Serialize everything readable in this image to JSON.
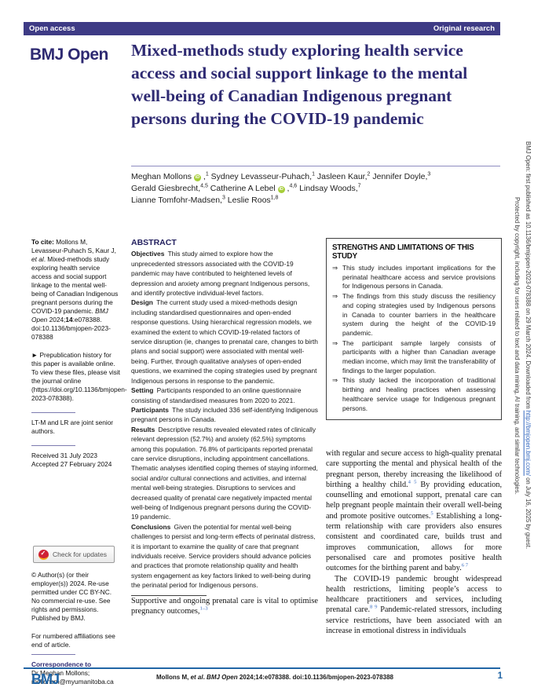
{
  "topbar": {
    "left": "Open access",
    "right": "Original research"
  },
  "brand": {
    "journal": "BMJ Open",
    "footer_logo": "BMJ"
  },
  "article": {
    "title": "Mixed-methods study exploring health service access and social support linkage to the mental well-being of Canadian Indigenous pregnant persons during the COVID-19 pandemic",
    "author_lines": [
      [
        {
          "name": "Meghan Mollons",
          "orcid": true,
          "comma": true,
          "sup": "1"
        },
        {
          "name": "Sydney Levasseur-Puhach",
          "comma": true,
          "sup": "1"
        },
        {
          "name": "Jasleen Kaur",
          "comma": true,
          "sup": "2"
        },
        {
          "name": "Jennifer Doyle",
          "comma": true,
          "sup": "3"
        }
      ],
      [
        {
          "name": "Gerald Giesbrecht",
          "comma": true,
          "sup": "4,5"
        },
        {
          "name": "Catherine A Lebel",
          "orcid": true,
          "comma": true,
          "sup": "4,6"
        },
        {
          "name": "Lindsay Woods",
          "comma": true,
          "sup": "7"
        }
      ],
      [
        {
          "name": "Lianne Tomfohr-Madsen",
          "comma": true,
          "sup": "3"
        },
        {
          "name": "Leslie Roos",
          "comma": false,
          "sup": "1,8"
        }
      ]
    ]
  },
  "sidebar": {
    "to_cite": [
      {
        "t": "To cite: ",
        "b": true
      },
      {
        "t": "Mollons M, Levasseur-Puhach S, Kaur J, "
      },
      {
        "t": "et al",
        "i": true
      },
      {
        "t": ". Mixed-methods study exploring health service access and social support linkage to the mental well-being of Canadian Indigenous pregnant persons during the COVID-19 pandemic. "
      },
      {
        "t": "BMJ Open",
        "i": true
      },
      {
        "t": " 2024;"
      },
      {
        "t": "14",
        "b": true
      },
      {
        "t": ":e078388. doi:10.1136/bmjopen-2023-078388"
      }
    ],
    "prepub": "► Prepublication history for this paper is available online. To view these files, please visit the journal online (https://doi.org/10.1136/bmjopen-2023-078388).",
    "joint_seniors": "LT-M and LR are joint senior authors.",
    "received": "Received 31 July 2023",
    "accepted": "Accepted 27 February 2024",
    "check_updates": "Check for updates",
    "copyright": "© Author(s) (or their employer(s)) 2024. Re-use permitted under CC BY-NC. No commercial re-use. See rights and permissions. Published by BMJ.",
    "affiliations_note": "For numbered affiliations see end of article.",
    "correspondence_label": "Correspondence to",
    "correspondence_text": "Dr Meghan Mollons; mollonsm@myumanitoba.ca"
  },
  "abstract": {
    "heading": "ABSTRACT",
    "sections": [
      {
        "label": "Objectives",
        "text": "This study aimed to explore how the unprecedented stressors associated with the COVID-19 pandemic may have contributed to heightened levels of depression and anxiety among pregnant Indigenous persons, and identify protective individual-level factors."
      },
      {
        "label": "Design",
        "text": "The current study used a mixed-methods design including standardised questionnaires and open-ended response questions. Using hierarchical regression models, we examined the extent to which COVID-19-related factors of service disruption (ie, changes to prenatal care, changes to birth plans and social support) were associated with mental well-being. Further, through qualitative analyses of open-ended questions, we examined the coping strategies used by pregnant Indigenous persons in response to the pandemic."
      },
      {
        "label": "Setting",
        "text": "Participants responded to an online questionnaire consisting of standardised measures from 2020 to 2021."
      },
      {
        "label": "Participants",
        "text": "The study included 336 self-identifying Indigenous pregnant persons in Canada."
      },
      {
        "label": "Results",
        "text": "Descriptive results revealed elevated rates of clinically relevant depression (52.7%) and anxiety (62.5%) symptoms among this population. 76.8% of participants reported prenatal care service disruptions, including appointment cancellations. Thematic analyses identified coping themes of staying informed, social and/or cultural connections and activities, and internal mental well-being strategies. Disruptions to services and decreased quality of prenatal care negatively impacted mental well-being of Indigenous pregnant persons during the COVID-19 pandemic."
      },
      {
        "label": "Conclusions",
        "text": "Given the potential for mental well-being challenges to persist and long-term effects of perinatal distress, it is important to examine the quality of care that pregnant individuals receive. Service providers should advance policies and practices that promote relationship quality and health system engagement as key factors linked to well-being during the perinatal period for Indigenous persons."
      }
    ]
  },
  "strengths": {
    "heading": "STRENGTHS AND LIMITATIONS OF THIS STUDY",
    "arrow": "⇒",
    "items": [
      "This study includes important implications for the perinatal healthcare access and service provisions for Indigenous persons in Canada.",
      "The findings from this study discuss the resiliency and coping strategies used by Indigenous persons in Canada to counter barriers in the healthcare system during the height of the COVID-19 pandemic.",
      "The participant sample largely consists of participants with a higher than Canadian average median income, which may limit the transferability of findings to the larger population.",
      "This study lacked the incorporation of traditional birthing and healing practices when assessing healthcare service usage for Indigenous pregnant persons."
    ]
  },
  "body": {
    "intro": [
      {
        "t": "Supportive and ongoing prenatal care is vital to optimise pregnancy outcomes,"
      },
      {
        "t": "1–3",
        "sup": true,
        "c": "ref"
      }
    ],
    "col2_p1": [
      {
        "t": "with regular and secure access to high-quality prenatal care supporting the mental and physical health of the pregnant person, thereby increasing the likelihood of birthing a healthy child."
      },
      {
        "t": "4 5",
        "sup": true,
        "c": "ref"
      },
      {
        "t": " By providing education, counselling and emotional support, prenatal care can help pregnant people maintain their overall well-being and promote positive outcomes."
      },
      {
        "t": "5",
        "sup": true,
        "c": "ref"
      },
      {
        "t": " Establishing a long-term relationship with care providers also ensures consistent and coordinated care, builds trust and improves communication, allows for more personalised care and promotes positive health outcomes for the birthing parent and baby."
      },
      {
        "t": "6 7",
        "sup": true,
        "c": "ref"
      }
    ],
    "col2_p2": [
      {
        "t": "The COVID-19 pandemic brought widespread health restrictions, limiting people’s access to healthcare practitioners and services, including prenatal care."
      },
      {
        "t": "8 9",
        "sup": true,
        "c": "ref"
      },
      {
        "t": " Pandemic-related stressors, including service restrictions, have been associated with an increase in emotional distress in individuals"
      }
    ]
  },
  "footer": {
    "citation": [
      {
        "t": "Mollons M, "
      },
      {
        "t": "et al",
        "i": true
      },
      {
        "t": ". "
      },
      {
        "t": "BMJ Open",
        "i": true
      },
      {
        "t": " 2024;"
      },
      {
        "t": "14",
        "b": true
      },
      {
        "t": ":e078388. doi:10.1136/bmjopen-2023-078388"
      }
    ],
    "page_number": "1"
  },
  "margin": {
    "line1": [
      {
        "t": "BMJ Open: first published as 10.1136/bmjopen-2023-078388 on 29 March 2024. Downloaded from "
      },
      {
        "t": "http://bmjopen.bmj.com/",
        "c": "link"
      },
      {
        "t": " on July 16, 2025 by guest."
      }
    ],
    "line2": "Protected by copyright, including for uses related to text and data mining, AI training, and similar technologies."
  },
  "colors": {
    "header_bar": "#3e3b85",
    "brand_navy": "#2e2a72",
    "reference_blue": "#3468bf",
    "footer_blue": "#2165a5",
    "orcid_green": "#a6ce39",
    "crossmark_red": "#cf2135",
    "crossmark_yellow": "#f5a81c"
  }
}
